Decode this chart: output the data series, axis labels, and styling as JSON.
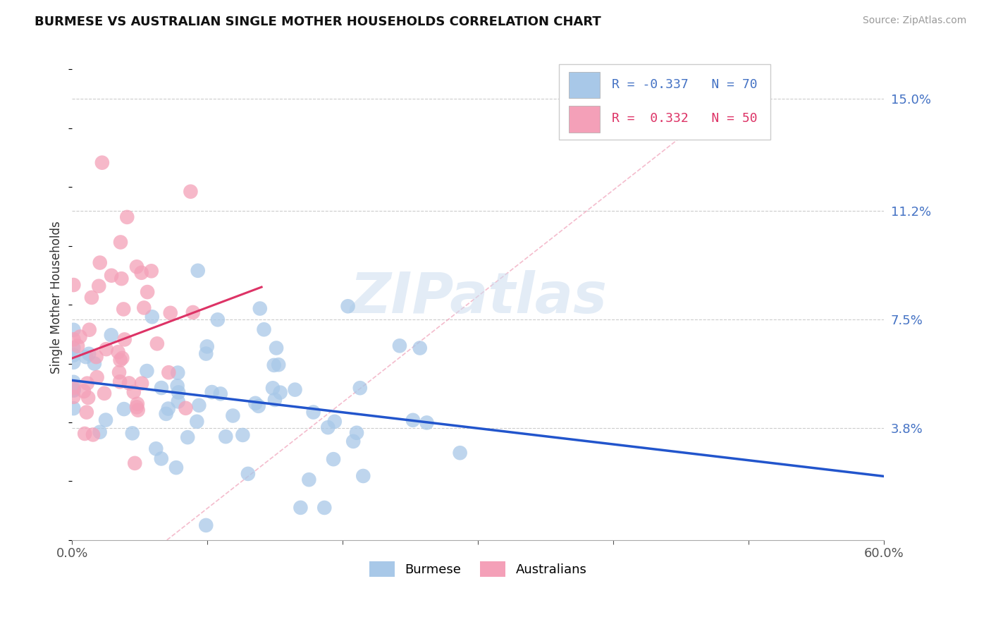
{
  "title": "BURMESE VS AUSTRALIAN SINGLE MOTHER HOUSEHOLDS CORRELATION CHART",
  "source": "Source: ZipAtlas.com",
  "ylabel": "Single Mother Households",
  "xlim": [
    0.0,
    0.6
  ],
  "ylim": [
    0.0,
    0.165
  ],
  "ytick_labels_right": [
    "3.8%",
    "7.5%",
    "11.2%",
    "15.0%"
  ],
  "ytick_vals_right": [
    0.038,
    0.075,
    0.112,
    0.15
  ],
  "burmese_R": -0.337,
  "burmese_N": 70,
  "australians_R": 0.332,
  "australians_N": 50,
  "burmese_color": "#a8c8e8",
  "australians_color": "#f4a0b8",
  "burmese_line_color": "#2255cc",
  "australians_line_color": "#dd3366",
  "diag_line_color": "#f0a0b8",
  "background_color": "#ffffff",
  "legend_blue_color": "#4472c4",
  "legend_pink_color": "#dd3366",
  "grid_color": "#cccccc"
}
